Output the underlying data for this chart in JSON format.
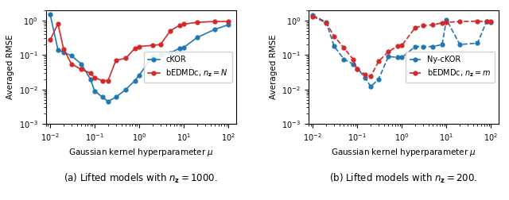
{
  "plot_a": {
    "caption": "(a) Lifted models with $n_{\\mathbf{z}} = 1000$.",
    "xlabel": "Gaussian kernel hyperparameter $\\mu$",
    "ylabel": "Averaged RMSE",
    "cKOR_x": [
      0.01,
      0.015,
      0.02,
      0.03,
      0.05,
      0.08,
      0.1,
      0.15,
      0.2,
      0.3,
      0.5,
      0.8,
      1.0,
      2.0,
      3.0,
      5.0,
      8.0,
      10.0,
      20.0,
      50.0,
      100.0
    ],
    "cKOR_y": [
      1.5,
      0.14,
      0.12,
      0.095,
      0.055,
      0.02,
      0.009,
      0.006,
      0.0045,
      0.006,
      0.01,
      0.018,
      0.026,
      0.09,
      0.1,
      0.115,
      0.155,
      0.165,
      0.32,
      0.55,
      0.75
    ],
    "bEDMDc_x": [
      0.01,
      0.015,
      0.02,
      0.03,
      0.05,
      0.08,
      0.1,
      0.15,
      0.2,
      0.3,
      0.5,
      0.8,
      1.0,
      2.0,
      3.0,
      5.0,
      8.0,
      10.0,
      20.0,
      50.0,
      100.0
    ],
    "bEDMDc_y": [
      0.27,
      0.8,
      0.15,
      0.055,
      0.038,
      0.03,
      0.022,
      0.018,
      0.018,
      0.07,
      0.08,
      0.155,
      0.175,
      0.19,
      0.2,
      0.5,
      0.72,
      0.78,
      0.88,
      0.93,
      0.93
    ],
    "cKOR_color": "#1f77b4",
    "bEDMDc_color": "#d62728",
    "legend_cKOR": "cKOR",
    "legend_bEDMDc": "bEDMDc, $n_{\\mathbf{z}} = N$",
    "ylim": [
      0.001,
      2.0
    ],
    "xlim": [
      0.008,
      150
    ]
  },
  "plot_b": {
    "caption": "(b) Lifted models with $n_{\\mathbf{z}} = 200$.",
    "xlabel": "Gaussian kernel hyperparameter $\\mu$",
    "ylabel": "Averaged RMSE",
    "NycKOR_x": [
      0.01,
      0.02,
      0.03,
      0.05,
      0.08,
      0.1,
      0.15,
      0.2,
      0.3,
      0.5,
      0.8,
      1.0,
      2.0,
      3.0,
      5.0,
      8.0,
      10.0,
      20.0,
      50.0,
      80.0,
      100.0
    ],
    "NycKOR_y": [
      1.4,
      0.9,
      0.18,
      0.075,
      0.055,
      0.04,
      0.022,
      0.012,
      0.02,
      0.09,
      0.085,
      0.085,
      0.175,
      0.175,
      0.175,
      0.2,
      1.05,
      0.2,
      0.22,
      0.95,
      0.9
    ],
    "bEDMDc_x": [
      0.01,
      0.02,
      0.03,
      0.05,
      0.08,
      0.1,
      0.15,
      0.2,
      0.3,
      0.5,
      0.8,
      1.0,
      2.0,
      3.0,
      5.0,
      8.0,
      10.0,
      20.0,
      50.0,
      80.0,
      100.0
    ],
    "bEDMDc_y": [
      1.3,
      0.85,
      0.35,
      0.16,
      0.075,
      0.038,
      0.027,
      0.024,
      0.065,
      0.125,
      0.18,
      0.19,
      0.62,
      0.7,
      0.75,
      0.85,
      0.88,
      0.93,
      0.95,
      0.93,
      0.92
    ],
    "NycKOR_color": "#1f77b4",
    "bEDMDc_color": "#d62728",
    "legend_NycKOR": "Ny-cKOR",
    "legend_bEDMDc": "bEDMDc, $n_{\\mathbf{z}} = m$",
    "ylim": [
      0.001,
      2.0
    ],
    "xlim": [
      0.008,
      150
    ]
  },
  "figsize": [
    6.4,
    2.52
  ],
  "dpi": 100
}
